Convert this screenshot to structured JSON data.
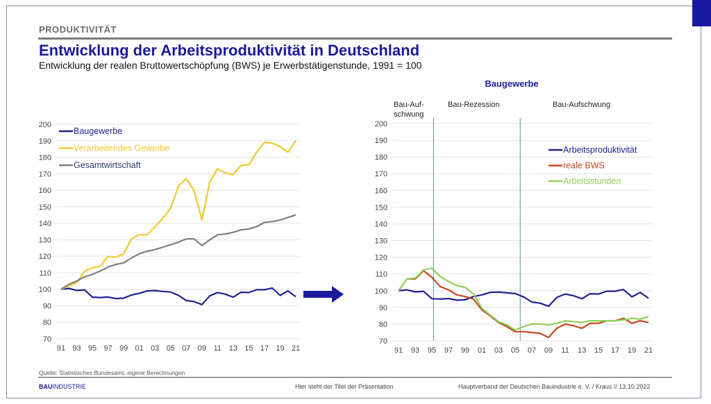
{
  "header": {
    "section": "PRODUKTIVITÄT",
    "title": "Entwicklung der Arbeitsproduktivität in Deutschland",
    "subtitle": "Entwicklung der realen Bruttowertschöpfung (BWS) je Erwerbstätigenstunde, 1991 = 100"
  },
  "footer": {
    "source": "Quelle: Statistisches Bundesamt, eigene Berechnungen",
    "logo_bold": "BAU",
    "logo_rest": "INDUSTRIE",
    "presentation_title": "Hier steht der Titel der Präsentation",
    "author": "Hauptverband  der Deutschen Bauindustrie e. V. / Kraus  //  13.10.2022"
  },
  "colors": {
    "brand": "#1a1a9a",
    "accent_square": "#1a1aa0",
    "arrow": "#1a1aa0"
  },
  "chart_data": [
    {
      "type": "line",
      "title": "",
      "x": [
        1991,
        1992,
        1993,
        1994,
        1995,
        1996,
        1997,
        1998,
        1999,
        2000,
        2001,
        2002,
        2003,
        2004,
        2005,
        2006,
        2007,
        2008,
        2009,
        2010,
        2011,
        2012,
        2013,
        2014,
        2015,
        2016,
        2017,
        2018,
        2019,
        2020,
        2021
      ],
      "x_tick_labels": [
        "91",
        "93",
        "95",
        "97",
        "99",
        "01",
        "03",
        "05",
        "07",
        "09",
        "11",
        "13",
        "15",
        "17",
        "19",
        "21"
      ],
      "ylim": [
        70,
        200
      ],
      "y_ticks": [
        70,
        80,
        90,
        100,
        110,
        120,
        130,
        140,
        150,
        160,
        170,
        180,
        190,
        200
      ],
      "grid": true,
      "legend": "top-left",
      "series": [
        {
          "name": "Baugewerbe",
          "color": "#1f1f8f",
          "values": [
            100,
            100.5,
            99.3,
            99.6,
            95.2,
            95,
            95.3,
            94.3,
            94.6,
            96.5,
            97.5,
            99,
            99.2,
            98.7,
            98.3,
            96.3,
            93.2,
            92.5,
            90.7,
            96,
            98,
            97,
            95.2,
            98.2,
            98,
            99.7,
            99.7,
            100.7,
            96.3,
            99,
            95.5
          ]
        },
        {
          "name": "Verarbeitendes Gewerbe",
          "color": "#f2c830",
          "values": [
            100,
            102,
            104,
            111,
            113,
            114,
            120,
            119.5,
            121.5,
            130.5,
            133,
            133,
            138,
            143,
            149,
            162.5,
            167,
            160,
            142,
            165,
            173,
            170.5,
            169.5,
            175,
            175.5,
            183,
            189,
            188.5,
            186.5,
            183,
            190
          ]
        },
        {
          "name": "Gesamtwirtschaft",
          "color": "#7f7f7f",
          "values": [
            100,
            103,
            105,
            107.5,
            109,
            111,
            113.5,
            115,
            116,
            119,
            121.5,
            123,
            124,
            125.5,
            127,
            128.5,
            130.5,
            130.5,
            126.5,
            130,
            133,
            133.5,
            134.5,
            136,
            136.5,
            138,
            140.5,
            141,
            142,
            143.5,
            145
          ]
        }
      ]
    },
    {
      "type": "line",
      "title": "Baugewerbe",
      "x": [
        1991,
        1992,
        1993,
        1994,
        1995,
        1996,
        1997,
        1998,
        1999,
        2000,
        2001,
        2002,
        2003,
        2004,
        2005,
        2006,
        2007,
        2008,
        2009,
        2010,
        2011,
        2012,
        2013,
        2014,
        2015,
        2016,
        2017,
        2018,
        2019,
        2020,
        2021
      ],
      "x_tick_labels": [
        "91",
        "93",
        "95",
        "97",
        "99",
        "01",
        "03",
        "05",
        "07",
        "09",
        "11",
        "13",
        "15",
        "17",
        "19",
        "21"
      ],
      "ylim": [
        70,
        200
      ],
      "y_ticks": [
        70,
        80,
        90,
        100,
        110,
        120,
        130,
        140,
        150,
        160,
        170,
        180,
        190,
        200
      ],
      "grid": true,
      "legend": "right",
      "phases": [
        {
          "label": "Bau-Auf-",
          "label2": "schwung"
        },
        {
          "label": "Bau-Rezession"
        },
        {
          "label": "Bau-Aufschwung"
        }
      ],
      "phase_boundaries": [
        1995.2,
        2005.6
      ],
      "phase_line_color": "#5b8fb0",
      "series": [
        {
          "name": "Arbeitsproduktivität",
          "color": "#1f1f8f",
          "values": [
            100,
            100.5,
            99.3,
            99.6,
            95.2,
            95,
            95.3,
            94.3,
            94.6,
            96.5,
            97.5,
            99,
            99.2,
            98.7,
            98.3,
            96.3,
            93.2,
            92.5,
            90.7,
            96,
            98,
            97,
            95.2,
            98.2,
            98,
            99.7,
            99.7,
            100.7,
            96.3,
            99,
            95.5
          ]
        },
        {
          "name": "reale BWS",
          "color": "#c8461e",
          "values": [
            100,
            107,
            107,
            112,
            108,
            102.5,
            100.5,
            97.5,
            96.5,
            95,
            88.5,
            85,
            81,
            78.5,
            75.5,
            75.5,
            75,
            74.5,
            72,
            77.5,
            80,
            79,
            77.5,
            80.5,
            80.5,
            82,
            82,
            83.5,
            80.5,
            82,
            81
          ]
        },
        {
          "name": "Arbeitsstunden",
          "color": "#8fd15a",
          "values": [
            100,
            107,
            107.5,
            112.5,
            113.5,
            108.5,
            105.5,
            103,
            102,
            98,
            89.5,
            85.5,
            81.5,
            79.5,
            76.5,
            78.5,
            80,
            80,
            79.5,
            80.5,
            82,
            81.5,
            81,
            82,
            82,
            82,
            82,
            82.5,
            83.5,
            83,
            84.5
          ]
        }
      ]
    }
  ]
}
